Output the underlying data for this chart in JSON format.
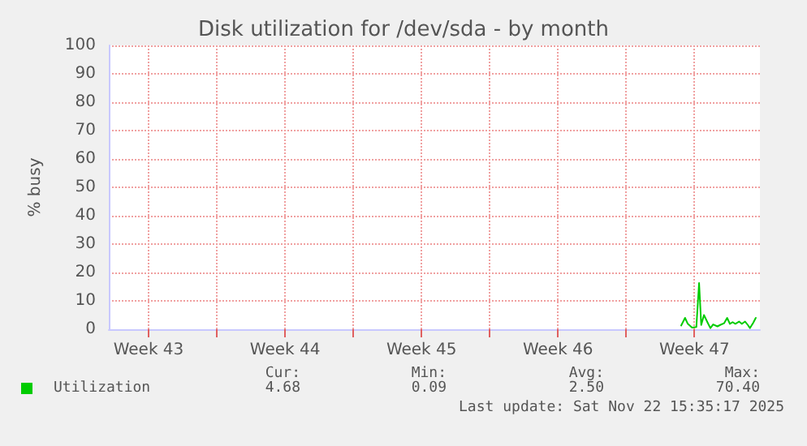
{
  "chart_data": {
    "type": "line",
    "title": "Disk utilization for /dev/sda - by month",
    "ylabel": "% busy",
    "xlim": [
      "2025-10-20T11:00",
      "2025-11-22T20:36"
    ],
    "ylim": [
      0,
      100
    ],
    "xticks": [
      {
        "value": "2025-10-22T12:00",
        "label": "Week 43"
      },
      {
        "value": "2025-10-26T00:00",
        "label": null
      },
      {
        "value": "2025-10-29T12:00",
        "label": "Week 44"
      },
      {
        "value": "2025-11-02T00:00",
        "label": null
      },
      {
        "value": "2025-11-05T12:00",
        "label": "Week 45"
      },
      {
        "value": "2025-11-09T00:00",
        "label": null
      },
      {
        "value": "2025-11-12T12:00",
        "label": "Week 46"
      },
      {
        "value": "2025-11-16T00:00",
        "label": null
      },
      {
        "value": "2025-11-19T12:00",
        "label": "Week 47"
      }
    ],
    "yticks": [
      0,
      10,
      20,
      30,
      40,
      50,
      60,
      70,
      80,
      90,
      100
    ],
    "grid": true,
    "legend": "bottom left",
    "marker": "none",
    "line_style": "solid",
    "series": [
      {
        "name": "Utilization",
        "color": "#00cc00",
        "x": [
          "2025-11-18T19:38",
          "2025-11-19T00:26",
          "2025-11-19T03:48",
          "2025-11-19T09:05",
          "2025-11-19T14:22",
          "2025-11-19T17:43",
          "2025-11-19T20:22",
          "2025-11-19T23:43",
          "2025-11-20T04:17",
          "2025-11-20T07:38",
          "2025-11-20T11:00",
          "2025-11-20T16:17",
          "2025-11-20T19:38",
          "2025-11-21T00:26",
          "2025-11-21T04:17",
          "2025-11-21T07:38",
          "2025-11-21T11:00",
          "2025-11-21T14:22",
          "2025-11-21T18:55",
          "2025-11-21T22:17",
          "2025-11-22T02:22",
          "2025-11-22T05:43",
          "2025-11-22T08:22",
          "2025-11-22T12:26",
          "2025-11-22T15:30"
        ],
        "values": [
          1.3,
          4.0,
          1.9,
          0.6,
          0.8,
          16.3,
          1.5,
          5.0,
          2.3,
          0.4,
          1.7,
          1.0,
          1.5,
          2.1,
          4.0,
          1.9,
          2.5,
          1.9,
          2.7,
          1.9,
          2.7,
          1.5,
          0.4,
          2.3,
          4.0
        ]
      }
    ],
    "annotations": [
      "Cur:",
      "Min:",
      "Avg:",
      "Max:",
      "4.68",
      "0.09",
      "2.50",
      "70.40",
      "Last update: Sat Nov 22 15:35:17 2025"
    ]
  }
}
